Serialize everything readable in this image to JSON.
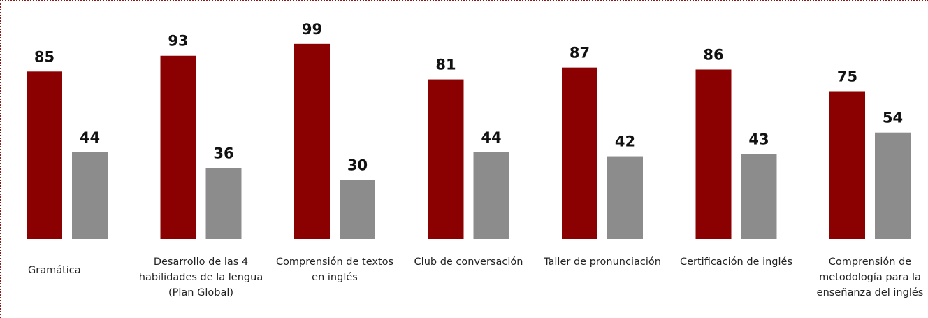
{
  "chart_data": {
    "type": "bar",
    "categories": [
      "Gramática",
      "Desarrollo de las 4 habilidades de la lengua (Plan Global)",
      "Comprensión de textos en inglés",
      "Club de conversación",
      "Taller de pronunciación",
      "Certificación de inglés",
      "Comprensión de metodología para la enseñanza del inglés"
    ],
    "series": [
      {
        "color": "#8b0000",
        "values": [
          85,
          93,
          99,
          81,
          87,
          86,
          75
        ]
      },
      {
        "color": "#8c8c8c",
        "values": [
          44,
          36,
          30,
          44,
          42,
          43,
          54
        ]
      }
    ]
  }
}
